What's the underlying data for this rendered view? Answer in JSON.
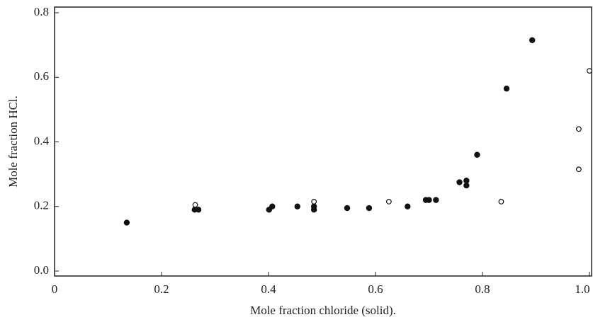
{
  "chart_data": {
    "type": "scatter",
    "x_label": "Mole fraction chloride (solid).",
    "y_label": "Mole fraction HCl.",
    "xlim": [
      0,
      1.0
    ],
    "ylim": [
      0,
      0.8
    ],
    "xticks": [
      0,
      0.2,
      0.4,
      0.6,
      0.8,
      {
        "value": 1.0,
        "label": "1.0"
      }
    ],
    "yticks": [
      {
        "value": 0,
        "label": "0.0"
      },
      0.2,
      0.4,
      0.6,
      0.8
    ],
    "series": [
      {
        "color": "#111111",
        "marker": "filled",
        "x": [
          0.135,
          0.262,
          0.269,
          0.401,
          0.407,
          0.454,
          0.485,
          0.485,
          0.547,
          0.588,
          0.66,
          0.694,
          0.7,
          0.713,
          0.757,
          0.77,
          0.77,
          0.79,
          0.845,
          0.893
        ],
        "values": [
          0.15,
          0.19,
          0.19,
          0.19,
          0.2,
          0.2,
          0.19,
          0.2,
          0.195,
          0.195,
          0.2,
          0.22,
          0.22,
          0.22,
          0.275,
          0.28,
          0.265,
          0.36,
          0.565,
          0.715
        ]
      },
      {
        "color": "#111111",
        "marker": "open",
        "x": [
          0.263,
          0.485,
          0.625,
          0.835,
          0.98,
          0.98,
          1.0
        ],
        "values": [
          0.205,
          0.215,
          0.215,
          0.215,
          0.44,
          0.315,
          0.62
        ]
      }
    ]
  }
}
